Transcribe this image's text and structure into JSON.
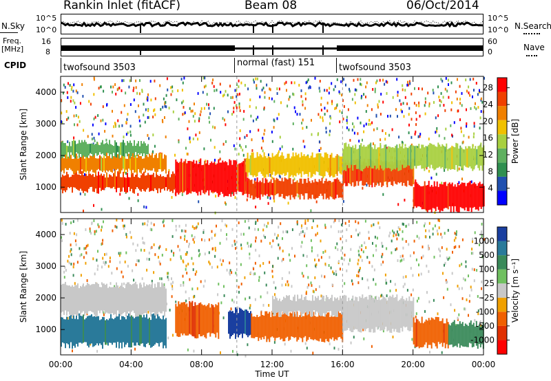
{
  "header": {
    "title": "Rankin Inlet (fitACF)",
    "beam": "Beam 08",
    "date": "06/Oct/2014"
  },
  "noise_panel": {
    "left_label": "N.Sky",
    "right_label": "N.Search",
    "left_ticks": [
      "10^5",
      "10^0"
    ],
    "right_ticks": [
      "10^5",
      "10^0"
    ]
  },
  "freq_panel": {
    "left_label_line1": "Freq.",
    "left_label_line2": "[MHz]",
    "right_label": "Nave",
    "left_ticks": [
      "16",
      "8"
    ],
    "right_ticks": [
      "60",
      "0"
    ]
  },
  "cpid": {
    "label": "CPID",
    "segments": [
      {
        "name": "twofsound 3503",
        "start_hour": 0,
        "end_hour": 10
      },
      {
        "name": "normal (fast) 151",
        "start_hour": 10,
        "end_hour": 16
      },
      {
        "name": "twofsound 3503",
        "start_hour": 16,
        "end_hour": 24
      }
    ]
  },
  "chart_data": [
    {
      "type": "heatmap",
      "title": "Power",
      "xlabel": "Time UT",
      "ylabel": "Slant Range [km]",
      "x_ticks": [
        "00:00",
        "04:00",
        "08:00",
        "12:00",
        "16:00",
        "20:00",
        "00:00"
      ],
      "xlim_hours": [
        0,
        24
      ],
      "y_ticks": [
        "1000",
        "2000",
        "3000",
        "4000"
      ],
      "ylim": [
        200,
        4500
      ],
      "colorbar": {
        "label": "Power [dB]",
        "ticks": [
          "4",
          "8",
          "12",
          "16",
          "20",
          "24",
          "28"
        ],
        "range": [
          0,
          30
        ],
        "colors": [
          "#0000ff",
          "#2050b0",
          "#2f8f50",
          "#5fb060",
          "#a8d040",
          "#f0c000",
          "#f08000",
          "#f04000",
          "#ff0000"
        ]
      },
      "bands": [
        {
          "t0": 0.0,
          "t1": 6.5,
          "r0": 900,
          "r1": 1400,
          "value": 26
        },
        {
          "t0": 0.0,
          "t1": 6.0,
          "r0": 1500,
          "r1": 2000,
          "value": 20
        },
        {
          "t0": 0.0,
          "t1": 5.0,
          "r0": 2000,
          "r1": 2400,
          "value": 12
        },
        {
          "t0": 6.5,
          "t1": 10.5,
          "r0": 800,
          "r1": 1800,
          "value": 27
        },
        {
          "t0": 10.5,
          "t1": 16.0,
          "r0": 700,
          "r1": 1200,
          "value": 25
        },
        {
          "t0": 10.5,
          "t1": 16.0,
          "r0": 1400,
          "r1": 2000,
          "value": 18
        },
        {
          "t0": 16.0,
          "t1": 20.0,
          "r0": 1100,
          "r1": 1800,
          "value": 25
        },
        {
          "t0": 16.0,
          "t1": 24.0,
          "r0": 1600,
          "r1": 2300,
          "value": 14
        },
        {
          "t0": 20.0,
          "t1": 24.0,
          "r0": 300,
          "r1": 1100,
          "value": 29
        }
      ]
    },
    {
      "type": "heatmap",
      "title": "Velocity",
      "xlabel": "Time UT",
      "ylabel": "Slant Range [km]",
      "x_ticks": [
        "00:00",
        "04:00",
        "08:00",
        "12:00",
        "16:00",
        "20:00",
        "00:00"
      ],
      "xlim_hours": [
        0,
        24
      ],
      "y_ticks": [
        "1000",
        "2000",
        "3000",
        "4000"
      ],
      "ylim": [
        200,
        4500
      ],
      "colorbar": {
        "label": "Velocity [m s⁻¹]",
        "ticks": [
          "1000",
          "500",
          "100",
          "25",
          "-25",
          "-100",
          "-500",
          "-1000"
        ],
        "colors": [
          "#1a3fa0",
          "#2a7a9a",
          "#3a8a5a",
          "#70c060",
          "#c8c8c8",
          "#f0a000",
          "#f06000",
          "#e03000",
          "#ff0000"
        ]
      },
      "bands": [
        {
          "t0": 0.0,
          "t1": 6.0,
          "r0": 500,
          "r1": 1400,
          "value": 300
        },
        {
          "t0": 0.0,
          "t1": 6.0,
          "r0": 1500,
          "r1": 2400,
          "value": 0
        },
        {
          "t0": 6.5,
          "t1": 9.0,
          "r0": 800,
          "r1": 1800,
          "value": -300
        },
        {
          "t0": 9.5,
          "t1": 10.8,
          "r0": 800,
          "r1": 1600,
          "value": 900
        },
        {
          "t0": 10.8,
          "t1": 16.0,
          "r0": 700,
          "r1": 1500,
          "value": -200
        },
        {
          "t0": 12.0,
          "t1": 16.0,
          "r0": 1500,
          "r1": 2000,
          "value": 0
        },
        {
          "t0": 16.0,
          "t1": 20.0,
          "r0": 1000,
          "r1": 2000,
          "value": 0
        },
        {
          "t0": 20.0,
          "t1": 22.0,
          "r0": 500,
          "r1": 1300,
          "value": -300
        },
        {
          "t0": 22.0,
          "t1": 24.0,
          "r0": 500,
          "r1": 1200,
          "value": 200
        }
      ]
    }
  ]
}
